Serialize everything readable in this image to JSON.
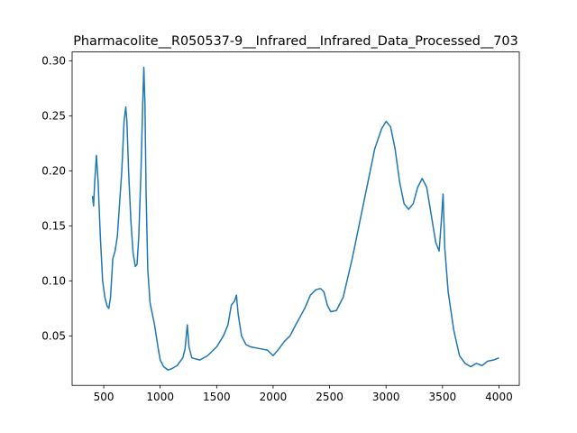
{
  "chart_data": {
    "type": "line",
    "title": "Pharmacolite__R050537-9__Infrared__Infrared_Data_Processed__703",
    "xlim": [
      220,
      4180
    ],
    "ylim": [
      0.005,
      0.308
    ],
    "xticks": [
      500,
      1000,
      1500,
      2000,
      2500,
      3000,
      3500,
      4000
    ],
    "yticks": [
      0.05,
      {
        "value": 0.1,
        "label": "0.10"
      },
      0.15,
      {
        "value": 0.2,
        "label": "0.20"
      },
      0.25,
      {
        "value": 0.3,
        "label": "0.30"
      }
    ],
    "series": [
      {
        "color": "#1f77b4",
        "x": [
          400,
          410,
          420,
          435,
          450,
          470,
          490,
          510,
          530,
          545,
          560,
          580,
          600,
          620,
          640,
          660,
          680,
          695,
          705,
          720,
          740,
          760,
          780,
          795,
          810,
          830,
          845,
          855,
          865,
          875,
          890,
          910,
          930,
          950,
          980,
          1000,
          1030,
          1070,
          1100,
          1150,
          1200,
          1220,
          1240,
          1255,
          1280,
          1350,
          1420,
          1500,
          1560,
          1600,
          1630,
          1660,
          1675,
          1690,
          1720,
          1760,
          1800,
          1900,
          1950,
          2000,
          2050,
          2100,
          2150,
          2200,
          2280,
          2330,
          2380,
          2420,
          2450,
          2480,
          2510,
          2560,
          2620,
          2700,
          2800,
          2900,
          2960,
          3000,
          3040,
          3080,
          3120,
          3160,
          3200,
          3240,
          3280,
          3320,
          3360,
          3400,
          3440,
          3470,
          3490,
          3505,
          3520,
          3550,
          3600,
          3650,
          3700,
          3750,
          3800,
          3850,
          3900,
          3950,
          4000
        ],
        "values": [
          0.177,
          0.168,
          0.19,
          0.214,
          0.19,
          0.14,
          0.1,
          0.085,
          0.077,
          0.075,
          0.085,
          0.12,
          0.127,
          0.14,
          0.17,
          0.2,
          0.245,
          0.258,
          0.245,
          0.2,
          0.155,
          0.125,
          0.113,
          0.115,
          0.14,
          0.2,
          0.26,
          0.294,
          0.26,
          0.18,
          0.11,
          0.08,
          0.07,
          0.06,
          0.04,
          0.028,
          0.022,
          0.019,
          0.02,
          0.023,
          0.03,
          0.038,
          0.06,
          0.04,
          0.03,
          0.028,
          0.032,
          0.04,
          0.05,
          0.06,
          0.078,
          0.082,
          0.087,
          0.07,
          0.05,
          0.042,
          0.04,
          0.038,
          0.037,
          0.032,
          0.038,
          0.045,
          0.05,
          0.06,
          0.075,
          0.087,
          0.092,
          0.093,
          0.09,
          0.078,
          0.072,
          0.073,
          0.085,
          0.12,
          0.17,
          0.22,
          0.238,
          0.245,
          0.24,
          0.22,
          0.19,
          0.17,
          0.165,
          0.17,
          0.185,
          0.193,
          0.185,
          0.16,
          0.135,
          0.127,
          0.155,
          0.179,
          0.13,
          0.09,
          0.055,
          0.032,
          0.025,
          0.022,
          0.025,
          0.023,
          0.027,
          0.028,
          0.03
        ]
      }
    ]
  }
}
